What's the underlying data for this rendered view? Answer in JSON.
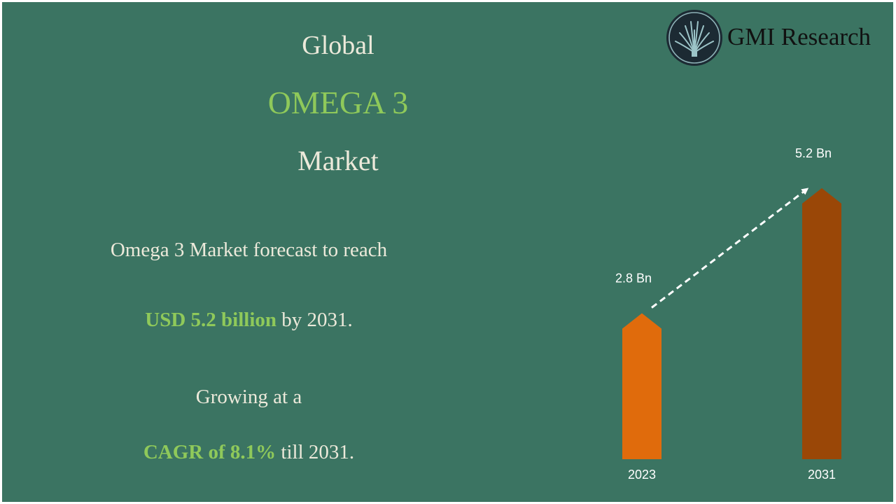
{
  "title": {
    "line1": "Global",
    "line2": "OMEGA 3",
    "line3": "Market"
  },
  "summary": {
    "line1": "Omega 3 Market forecast to reach",
    "line2_highlight": "USD 5.2 billion",
    "line2_rest": " by 2031.",
    "line3": "Growing at a",
    "line4_highlight": "CAGR of 8.1%",
    "line4_rest": " till 2031."
  },
  "logo": {
    "text": "GMI Research",
    "icon": "fan-tree-emblem-icon"
  },
  "colors": {
    "background": "#3b7462",
    "highlight": "#8fc95a",
    "text": "#ece9da",
    "bar_2023": "#e06b0c",
    "bar_2031": "#9a4707"
  },
  "chart_data": {
    "type": "bar",
    "categories": [
      "2023",
      "2031"
    ],
    "values": [
      2.8,
      5.2
    ],
    "data_labels": [
      "2.8  Bn",
      "5.2 Bn"
    ],
    "unit": "USD Bn",
    "trend_arrow": true,
    "ylim": [
      0,
      5.6
    ],
    "grid": false
  }
}
